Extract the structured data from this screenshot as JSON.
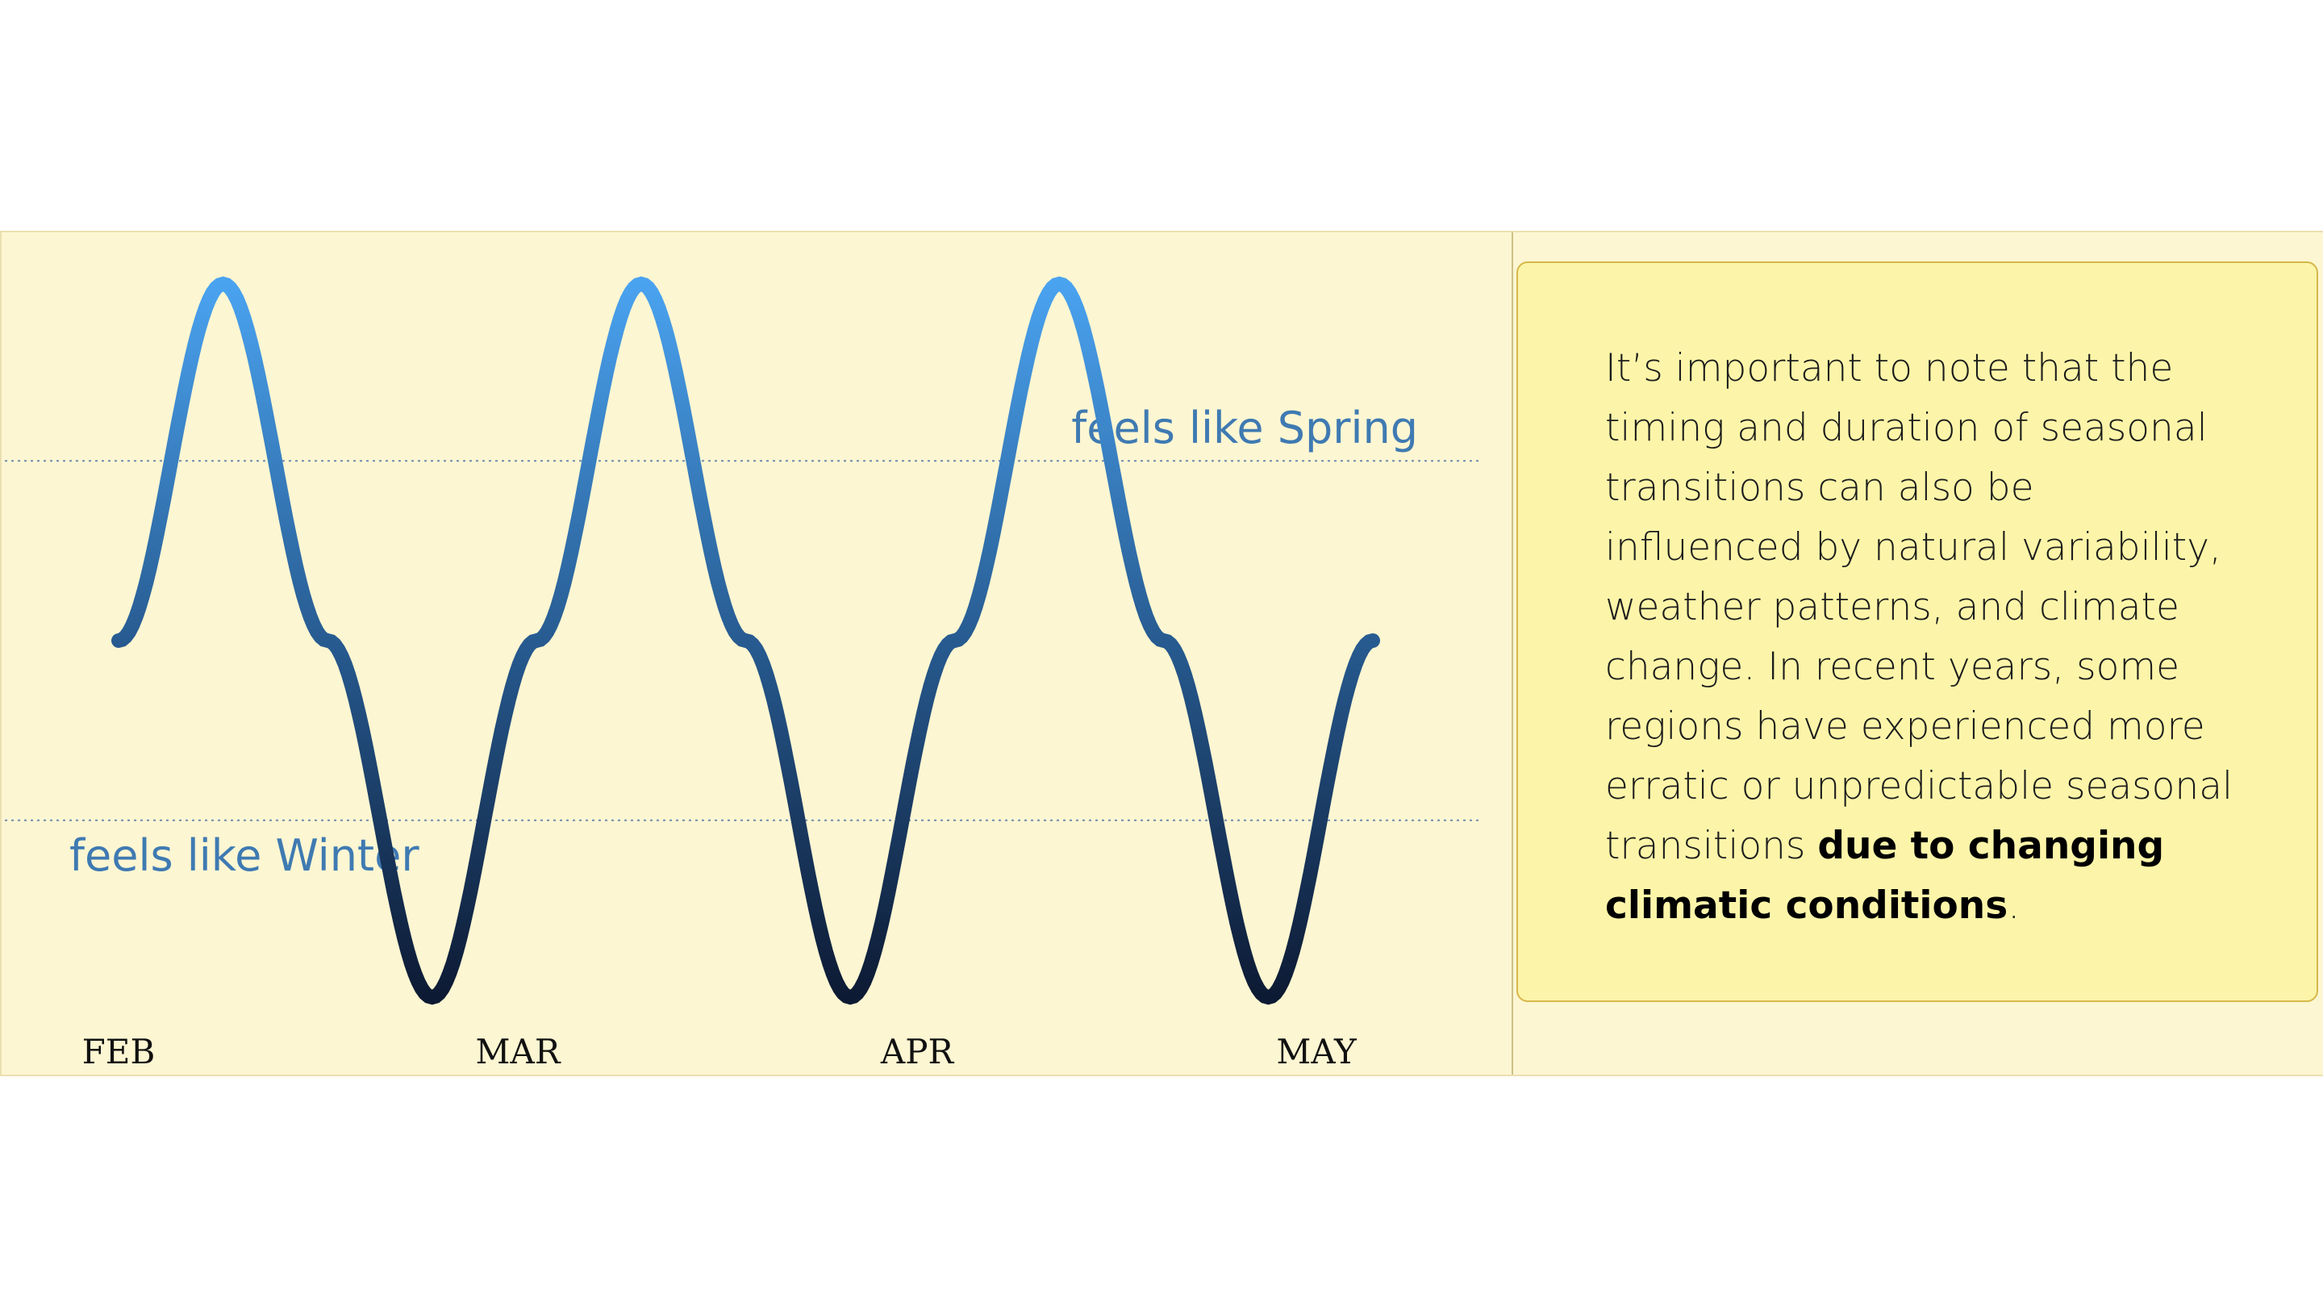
{
  "chart_data": {
    "type": "line",
    "title": "",
    "xlabel": "",
    "ylabel": "",
    "x_ticks": [
      "FEB",
      "MAR",
      "APR",
      "MAY"
    ],
    "series": [
      {
        "x": [
          0,
          0.25,
          0.5,
          0.75,
          1,
          1.25,
          1.5,
          1.75,
          2,
          2.25,
          2.5,
          2.75,
          3
        ],
        "values": [
          0,
          1,
          0,
          -1,
          0,
          1,
          0,
          -1,
          0,
          1,
          0,
          -1,
          0
        ]
      }
    ],
    "reference_lines": [
      {
        "label": "feels like Spring",
        "value": 0.6
      },
      {
        "label": "feels like Winter",
        "value": -0.6
      }
    ],
    "colors": {
      "curve_top": "#4aa3f0",
      "curve_bottom": "#0d1a33",
      "reference_line": "#6f8cb0",
      "reference_label": "#3f7ab2"
    },
    "grid": false,
    "legend": "none"
  },
  "note": {
    "text": "It’s important to note that the timing and duration of seasonal transitions can also be influenced by natural variability, weather patterns, and climate change. In recent years, some regions have experienced more erratic or unpredictable seasonal transitions ",
    "emphasis": "due to changing climatic conditions",
    "ending": "."
  }
}
